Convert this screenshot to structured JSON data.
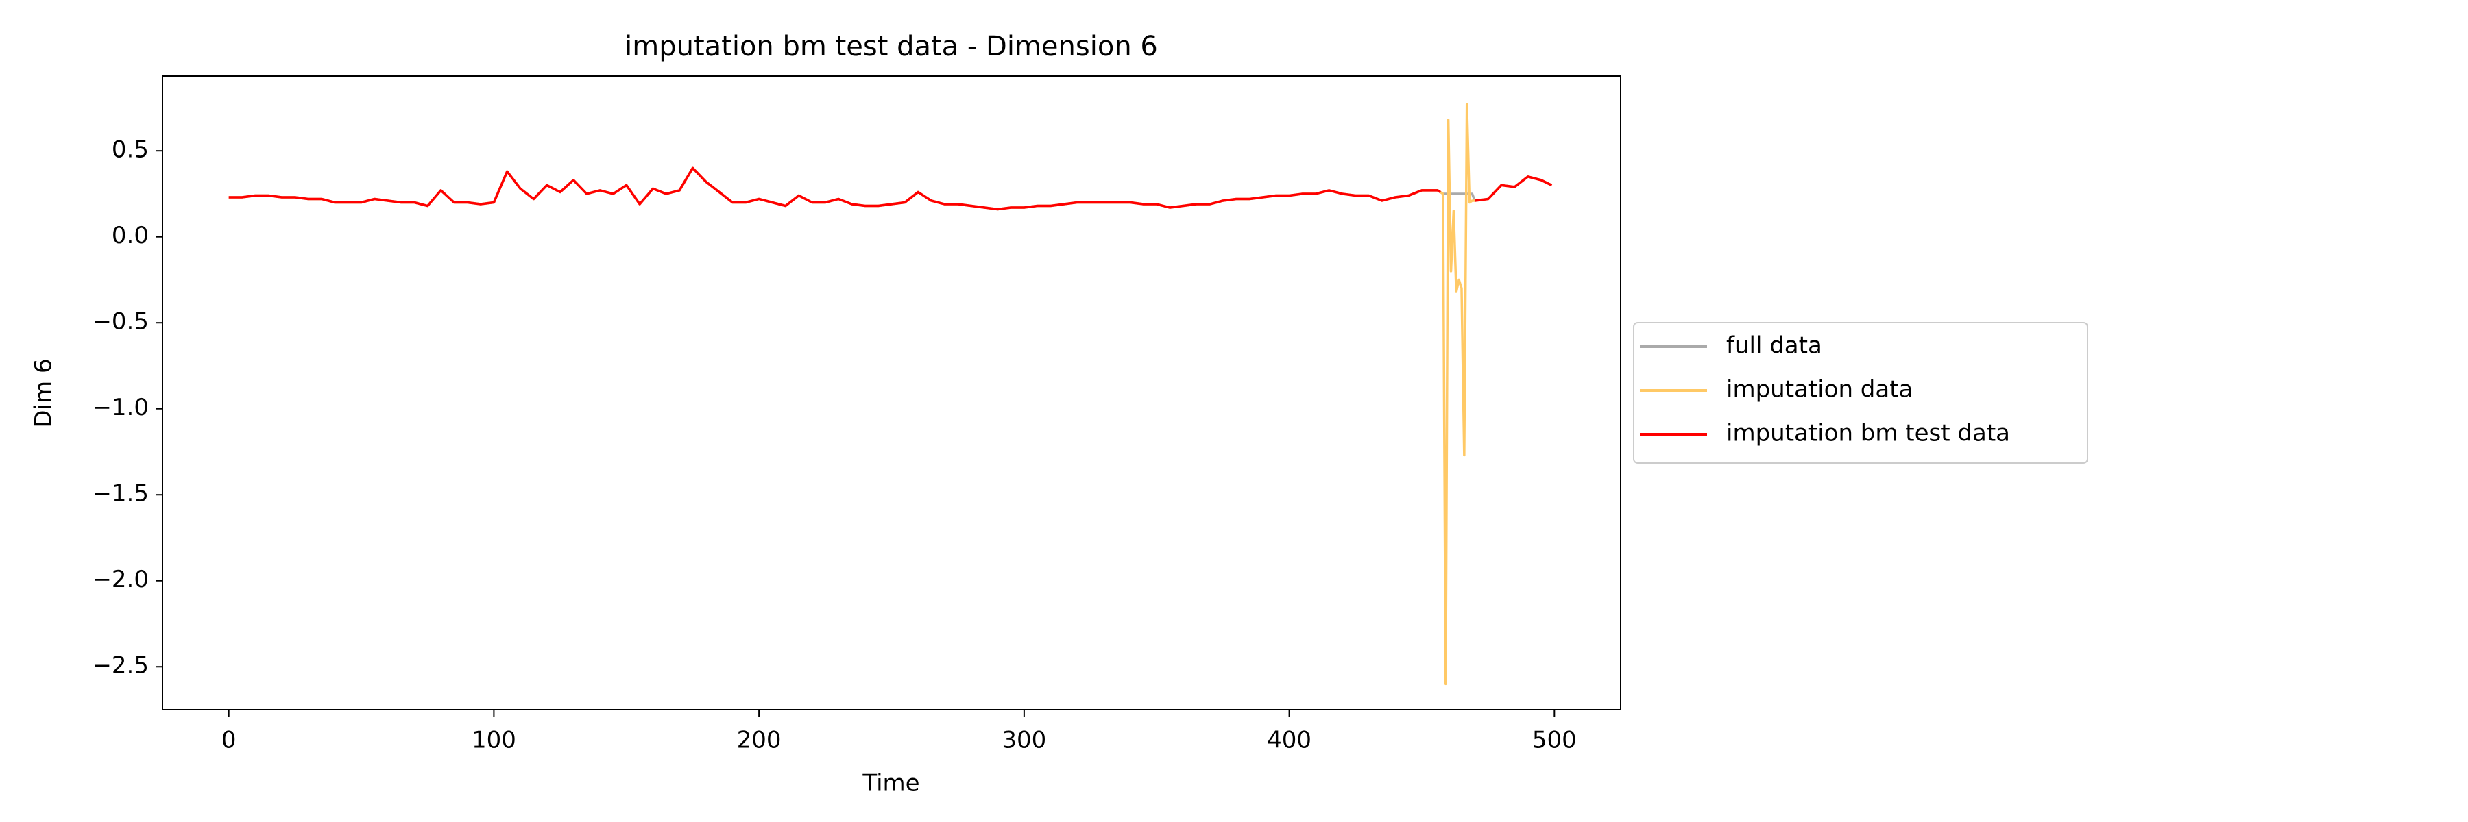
{
  "chart_data": {
    "type": "line",
    "title": "imputation bm test data - Dimension 6",
    "xlabel": "Time",
    "ylabel": "Dim 6",
    "x": [
      0,
      5,
      10,
      15,
      20,
      25,
      30,
      35,
      40,
      45,
      50,
      55,
      60,
      65,
      70,
      75,
      80,
      85,
      90,
      95,
      100,
      105,
      110,
      115,
      120,
      125,
      130,
      135,
      140,
      145,
      150,
      155,
      160,
      165,
      170,
      175,
      180,
      185,
      190,
      195,
      200,
      205,
      210,
      215,
      220,
      225,
      230,
      235,
      240,
      245,
      250,
      255,
      260,
      265,
      270,
      275,
      280,
      285,
      290,
      295,
      300,
      305,
      310,
      315,
      320,
      325,
      330,
      335,
      340,
      345,
      350,
      355,
      360,
      365,
      370,
      375,
      380,
      385,
      390,
      395,
      400,
      405,
      410,
      415,
      420,
      425,
      430,
      435,
      440,
      445,
      450,
      455,
      456,
      457,
      458,
      459,
      460,
      461,
      462,
      463,
      464,
      465,
      466,
      467,
      468,
      469,
      470,
      475,
      480,
      485,
      490,
      495,
      499
    ],
    "series": [
      {
        "name": "full data",
        "color": "#aaaaaa",
        "values": [
          0.23,
          0.23,
          0.24,
          0.24,
          0.23,
          0.23,
          0.22,
          0.22,
          0.2,
          0.2,
          0.2,
          0.22,
          0.21,
          0.2,
          0.2,
          0.18,
          0.27,
          0.2,
          0.2,
          0.19,
          0.2,
          0.38,
          0.28,
          0.22,
          0.3,
          0.26,
          0.33,
          0.25,
          0.27,
          0.25,
          0.3,
          0.19,
          0.28,
          0.25,
          0.27,
          0.4,
          0.32,
          0.26,
          0.2,
          0.2,
          0.22,
          0.2,
          0.18,
          0.24,
          0.2,
          0.2,
          0.22,
          0.19,
          0.18,
          0.18,
          0.19,
          0.2,
          0.26,
          0.21,
          0.19,
          0.19,
          0.18,
          0.17,
          0.16,
          0.17,
          0.17,
          0.18,
          0.18,
          0.19,
          0.2,
          0.2,
          0.2,
          0.2,
          0.2,
          0.19,
          0.19,
          0.17,
          0.18,
          0.19,
          0.19,
          0.21,
          0.22,
          0.22,
          0.23,
          0.24,
          0.24,
          0.25,
          0.25,
          0.27,
          0.25,
          0.24,
          0.24,
          0.21,
          0.23,
          0.24,
          0.27,
          0.27,
          0.27,
          0.26,
          0.25,
          0.25,
          0.25,
          0.25,
          0.25,
          0.25,
          0.25,
          0.25,
          0.25,
          0.25,
          0.25,
          0.25,
          0.21,
          0.22,
          0.3,
          0.29,
          0.35,
          0.33,
          0.3
        ]
      },
      {
        "name": "imputation data",
        "color": "#ffc966",
        "values": [
          0.23,
          0.23,
          0.24,
          0.24,
          0.23,
          0.23,
          0.22,
          0.22,
          0.2,
          0.2,
          0.2,
          0.22,
          0.21,
          0.2,
          0.2,
          0.18,
          0.27,
          0.2,
          0.2,
          0.19,
          0.2,
          0.38,
          0.28,
          0.22,
          0.3,
          0.26,
          0.33,
          0.25,
          0.27,
          0.25,
          0.3,
          0.19,
          0.28,
          0.25,
          0.27,
          0.4,
          0.32,
          0.26,
          0.2,
          0.2,
          0.22,
          0.2,
          0.18,
          0.24,
          0.2,
          0.2,
          0.22,
          0.19,
          0.18,
          0.18,
          0.19,
          0.2,
          0.26,
          0.21,
          0.19,
          0.19,
          0.18,
          0.17,
          0.16,
          0.17,
          0.17,
          0.18,
          0.18,
          0.19,
          0.2,
          0.2,
          0.2,
          0.2,
          0.2,
          0.19,
          0.19,
          0.17,
          0.18,
          0.19,
          0.19,
          0.21,
          0.22,
          0.22,
          0.23,
          0.24,
          0.24,
          0.25,
          0.25,
          0.27,
          0.25,
          0.24,
          0.24,
          0.21,
          0.23,
          0.24,
          0.27,
          0.27,
          0.27,
          0.26,
          0.25,
          -2.6,
          0.68,
          -0.2,
          0.15,
          -0.32,
          -0.25,
          -0.3,
          -1.27,
          0.77,
          0.2,
          0.21,
          0.21,
          0.22,
          0.3,
          0.29,
          0.35,
          0.33,
          0.3
        ]
      },
      {
        "name": "imputation bm test data",
        "color": "#ff0000",
        "values": [
          0.23,
          0.23,
          0.24,
          0.24,
          0.23,
          0.23,
          0.22,
          0.22,
          0.2,
          0.2,
          0.2,
          0.22,
          0.21,
          0.2,
          0.2,
          0.18,
          0.27,
          0.2,
          0.2,
          0.19,
          0.2,
          0.38,
          0.28,
          0.22,
          0.3,
          0.26,
          0.33,
          0.25,
          0.27,
          0.25,
          0.3,
          0.19,
          0.28,
          0.25,
          0.27,
          0.4,
          0.32,
          0.26,
          0.2,
          0.2,
          0.22,
          0.2,
          0.18,
          0.24,
          0.2,
          0.2,
          0.22,
          0.19,
          0.18,
          0.18,
          0.19,
          0.2,
          0.26,
          0.21,
          0.19,
          0.19,
          0.18,
          0.17,
          0.16,
          0.17,
          0.17,
          0.18,
          0.18,
          0.19,
          0.2,
          0.2,
          0.2,
          0.2,
          0.2,
          0.19,
          0.19,
          0.17,
          0.18,
          0.19,
          0.19,
          0.21,
          0.22,
          0.22,
          0.23,
          0.24,
          0.24,
          0.25,
          0.25,
          0.27,
          0.25,
          0.24,
          0.24,
          0.21,
          0.23,
          0.24,
          0.27,
          0.27,
          0.27,
          0.26,
          null,
          null,
          null,
          null,
          null,
          null,
          null,
          null,
          null,
          null,
          null,
          null,
          0.21,
          0.22,
          0.3,
          0.29,
          0.35,
          0.33,
          0.3
        ]
      }
    ],
    "xlim": [
      -25,
      525
    ],
    "xticks": [
      0,
      100,
      200,
      300,
      400,
      500
    ],
    "ylim": [
      -2.75,
      0.935
    ],
    "yticks": [
      {
        "value": -2.5,
        "label": "−2.5"
      },
      {
        "value": -2,
        "label": "−2.0"
      },
      {
        "value": -1.5,
        "label": "−1.5"
      },
      {
        "value": -1,
        "label": "−1.0"
      },
      {
        "value": -0.5,
        "label": "−0.5"
      },
      {
        "value": 0,
        "label": "0.0"
      },
      0.5
    ],
    "legend": "outside right"
  }
}
